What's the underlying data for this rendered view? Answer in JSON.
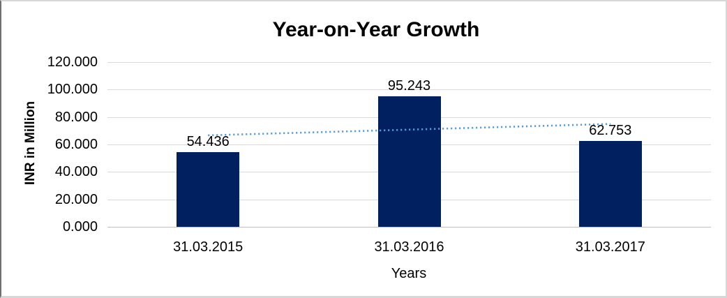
{
  "chart_data": {
    "type": "bar",
    "title": "Year-on-Year Growth",
    "xlabel": "Years",
    "ylabel": "INR in Million",
    "categories": [
      "31.03.2015",
      "31.03.2016",
      "31.03.2017"
    ],
    "values": [
      54.436,
      95.243,
      62.753
    ],
    "data_labels": [
      "54.436",
      "95.243",
      "62.753"
    ],
    "y_ticks": [
      {
        "value": 0,
        "label": "0.000"
      },
      {
        "value": 20,
        "label": "20.000"
      },
      {
        "value": 40,
        "label": "40.000"
      },
      {
        "value": 60,
        "label": "60.000"
      },
      {
        "value": 80,
        "label": "80.000"
      },
      {
        "value": 100,
        "label": "100.000"
      },
      {
        "value": 120,
        "label": "120.000"
      }
    ],
    "ylim": [
      0,
      120
    ],
    "grid": "horizontal",
    "legend": "none",
    "bar_color": "#002060",
    "trendline": {
      "type": "linear",
      "style": "dotted",
      "color": "#5B9BD5"
    }
  }
}
